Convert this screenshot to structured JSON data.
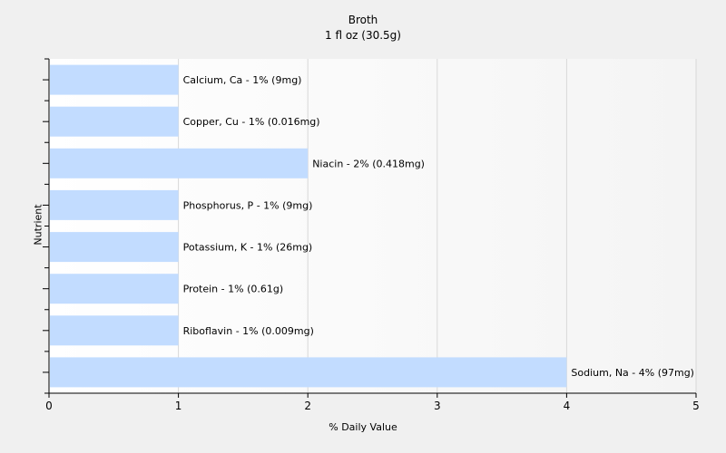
{
  "chart_data": {
    "type": "bar",
    "orientation": "horizontal",
    "title": "Broth",
    "subtitle": "1 fl oz (30.5g)",
    "xlabel": "% Daily Value",
    "ylabel": "Nutrient",
    "xlim": [
      0,
      5
    ],
    "x_ticks": [
      "0",
      "1",
      "2",
      "3",
      "4",
      "5"
    ],
    "grid": "vertical",
    "legend": "none",
    "colors": {
      "bar": "#c2dcff",
      "plot_background": "#ffffff",
      "page_background": "#f0f0f0",
      "gridline": "#d8d8d8",
      "axis": "#000000"
    },
    "categories": [
      "Calcium, Ca",
      "Copper, Cu",
      "Niacin",
      "Phosphorus, P",
      "Potassium, K",
      "Protein",
      "Riboflavin",
      "Sodium, Na"
    ],
    "values": [
      1,
      1,
      2,
      1,
      1,
      1,
      1,
      4
    ],
    "data_labels": [
      "Calcium, Ca - 1% (9mg)",
      "Copper, Cu - 1% (0.016mg)",
      "Niacin - 2% (0.418mg)",
      "Phosphorus, P - 1% (9mg)",
      "Potassium, K - 1% (26mg)",
      "Protein - 1% (0.61g)",
      "Riboflavin - 1% (0.009mg)",
      "Sodium, Na - 4% (97mg)"
    ]
  }
}
